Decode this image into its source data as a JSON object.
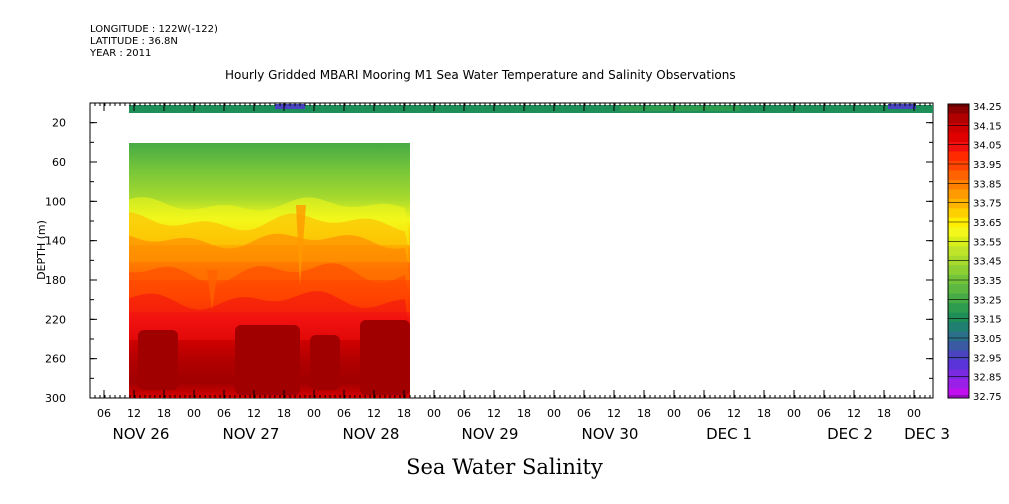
{
  "header": {
    "longitude": "LONGITUDE : 122W(-122)",
    "latitude": "LATITUDE : 36.8N",
    "year": "YEAR : 2011"
  },
  "chart_data": {
    "type": "heatmap",
    "title": "Hourly Gridded MBARI Mooring M1 Sea Water Temperature and Salinity Observations",
    "xlabel": "Sea Water Salinity",
    "ylabel": "DEPTH (m)",
    "ylim": [
      300,
      0
    ],
    "y_ticks": [
      20,
      60,
      100,
      140,
      180,
      220,
      260,
      300
    ],
    "x_hour_ticks": [
      "06",
      "12",
      "18",
      "00",
      "06",
      "12",
      "18",
      "00",
      "06",
      "12",
      "18",
      "00",
      "06",
      "12",
      "18",
      "00",
      "06",
      "12",
      "18",
      "00",
      "06",
      "12",
      "18",
      "00",
      "06",
      "12",
      "18",
      "00"
    ],
    "x_date_labels": [
      "NOV 26",
      "NOV 27",
      "NOV 28",
      "NOV 29",
      "NOV 30",
      "DEC  1",
      "DEC  2",
      "DEC  3"
    ],
    "colorbar": {
      "levels": [
        "34.25",
        "34.15",
        "34.05",
        "33.95",
        "33.85",
        "33.75",
        "33.65",
        "33.55",
        "33.45",
        "33.35",
        "33.25",
        "33.15",
        "33.05",
        "32.95",
        "32.85",
        "32.75"
      ],
      "colors": [
        "#8b0000",
        "#b00000",
        "#cc0000",
        "#e00000",
        "#f01010",
        "#ff2a00",
        "#ff4500",
        "#ff6200",
        "#ff8000",
        "#ff9a00",
        "#ffb400",
        "#ffd000",
        "#ffee00",
        "#f3f71a",
        "#d9ef1a",
        "#bfe42a",
        "#a8da2d",
        "#8ecf34",
        "#74c43a",
        "#5cb840",
        "#46ab45",
        "#2e9c4e",
        "#1f8f5a",
        "#1f7f70",
        "#2b6f88",
        "#3a5aa3",
        "#4a44c0",
        "#5a34d8",
        "#7a2ae0",
        "#9a20e8",
        "#c010f0"
      ]
    },
    "series": [
      {
        "depth_m": [
          10,
          35,
          60,
          85,
          110,
          135,
          160,
          185,
          210,
          235,
          260,
          285,
          300
        ],
        "surface_mean": 33.3,
        "profile_mean": [
          33.35,
          33.4,
          33.45,
          33.55,
          33.7,
          33.85,
          33.95,
          34.05,
          34.1,
          34.15,
          34.2,
          34.2,
          34.15
        ],
        "time_coverage": [
          "NOV 26 12",
          "NOV 28 18"
        ]
      }
    ]
  }
}
